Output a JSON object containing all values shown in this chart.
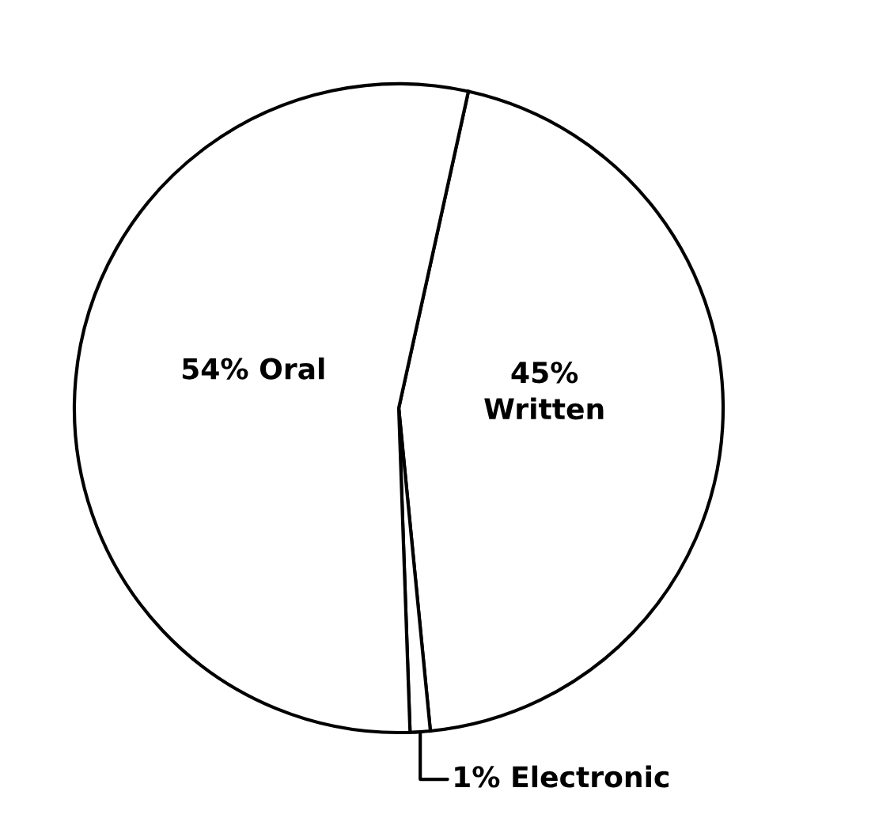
{
  "chart_data": {
    "type": "pie",
    "categories": [
      "Written",
      "Electronic",
      "Oral"
    ],
    "values": [
      45,
      1,
      54
    ],
    "value_labels": [
      "45%",
      "1%",
      "54%"
    ],
    "colors": [
      "#ffffff",
      "#ffffff",
      "#ffffff"
    ]
  }
}
